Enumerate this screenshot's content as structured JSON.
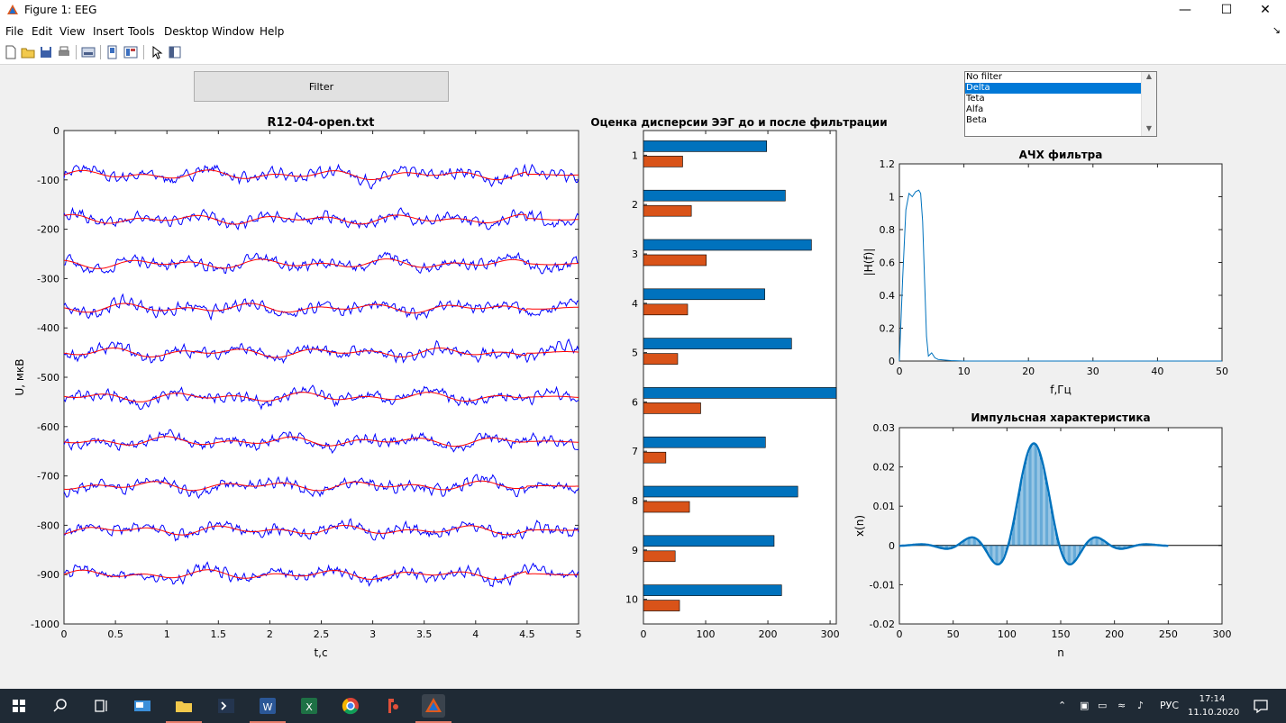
{
  "window": {
    "title": "Figure 1: EEG",
    "minimize_glyph": "—",
    "maximize_glyph": "☐",
    "close_glyph": "✕"
  },
  "menu": [
    "File",
    "Edit",
    "View",
    "Insert",
    "Tools",
    "Desktop",
    "Window",
    "Help"
  ],
  "menu_pin_glyph": "↘",
  "toolbar_icons": [
    "new-figure-icon",
    "open-file-icon",
    "save-icon",
    "print-icon",
    "link-plot-icon",
    "hide-plot-tools-icon",
    "show-plot-tools-icon",
    "edit-plot-arrow-icon",
    "property-inspector-icon"
  ],
  "filter_button": {
    "label": "Filter"
  },
  "filter_list": {
    "options": [
      "No filter",
      "Delta",
      "Teta",
      "Alfa",
      "Beta"
    ],
    "selected_index": 1
  },
  "colors": {
    "raw": "#0000ff",
    "filtered": "#ff0000",
    "bar_before": "#0072bd",
    "bar_after": "#d95319",
    "response": "#0072bd"
  },
  "chart_data": [
    {
      "type": "line",
      "title": "R12-04-open.txt",
      "xlabel": "t,c",
      "ylabel": "U, мкВ",
      "xlim": [
        0,
        5
      ],
      "ylim": [
        -1000,
        0
      ],
      "xticks": [
        "0",
        "0.5",
        "1",
        "1.5",
        "2",
        "2.5",
        "3",
        "3.5",
        "4",
        "4.5",
        "5"
      ],
      "yticks": [
        "0",
        "-100",
        "-200",
        "-300",
        "-400",
        "-500",
        "-600",
        "-700",
        "-800",
        "-900",
        "-1000"
      ],
      "channel_offsets": [
        -90,
        -180,
        -270,
        -360,
        -450,
        -540,
        -630,
        -720,
        -810,
        -900
      ],
      "series": [
        {
          "color": "blue",
          "amplitude": 15
        },
        {
          "color": "red",
          "amplitude": 9
        }
      ]
    },
    {
      "type": "bar",
      "orientation": "horizontal",
      "title": "Оценка дисперсии ЭЭГ до и после фильтрации",
      "categories": [
        "1",
        "2",
        "3",
        "4",
        "5",
        "6",
        "7",
        "8",
        "9",
        "10"
      ],
      "xlim": [
        0,
        310
      ],
      "xticks": [
        "0",
        "100",
        "200",
        "300"
      ],
      "series": [
        {
          "values": [
            198,
            228,
            270,
            195,
            238,
            312,
            196,
            248,
            210,
            222
          ]
        },
        {
          "values": [
            63,
            77,
            101,
            71,
            55,
            92,
            36,
            74,
            51,
            58
          ]
        }
      ]
    },
    {
      "type": "line",
      "title": "АЧХ фильтра",
      "xlabel": "f,Гц",
      "ylabel": "|H(f)|",
      "xlim": [
        0,
        50
      ],
      "ylim": [
        0,
        1.2
      ],
      "xticks": [
        "0",
        "10",
        "20",
        "30",
        "40",
        "50"
      ],
      "yticks": [
        "0",
        "0.2",
        "0.4",
        "0.6",
        "0.8",
        "1",
        "1.2"
      ],
      "x": [
        0,
        0.5,
        1,
        1.5,
        2,
        2.5,
        3,
        3.3,
        3.6,
        3.9,
        4.2,
        4.5,
        5,
        5.5,
        6,
        8,
        10,
        50
      ],
      "y": [
        0,
        0.5,
        0.92,
        1.02,
        1.0,
        1.03,
        1.04,
        1.02,
        0.85,
        0.5,
        0.15,
        0.03,
        0.05,
        0.02,
        0.01,
        0.003,
        0.0,
        0.0
      ]
    },
    {
      "type": "line",
      "title": "Импульсная характеристика",
      "xlabel": "n",
      "ylabel": "x(n)",
      "xlim": [
        0,
        300
      ],
      "ylim": [
        -0.02,
        0.03
      ],
      "xticks": [
        "0",
        "50",
        "100",
        "150",
        "200",
        "250",
        "300"
      ],
      "yticks": [
        "0.03",
        "0.02",
        "0.01",
        "0",
        "-0.01",
        "-0.02"
      ],
      "n_start": 0,
      "n_end": 250,
      "peak_n": 125,
      "peak_value": 0.026
    }
  ],
  "taskbar": {
    "tray_lang": "РУС",
    "time": "17:14",
    "date": "11.10.2020"
  }
}
